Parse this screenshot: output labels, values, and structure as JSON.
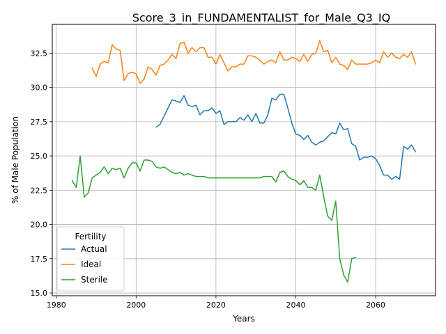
{
  "chart_data": {
    "type": "line",
    "title": "Score_3_in_FUNDAMENTALIST_for_Male_Q3_IQ",
    "xlabel": "Years",
    "ylabel": "% of Male Population",
    "xlim": [
      1979,
      2075
    ],
    "ylim": [
      14.8,
      34.6
    ],
    "xticks": [
      1980,
      2000,
      2020,
      2040,
      2060
    ],
    "xtick_labels": [
      "1980",
      "2000",
      "2020",
      "2040",
      "2060"
    ],
    "yticks": [
      15.0,
      17.5,
      20.0,
      22.5,
      25.0,
      27.5,
      30.0,
      32.5
    ],
    "ytick_labels": [
      "15.0",
      "17.5",
      "20.0",
      "22.5",
      "25.0",
      "27.5",
      "30.0",
      "32.5"
    ],
    "grid": true,
    "legend": {
      "title": "Fertility",
      "placement": "lower-left"
    },
    "series": [
      {
        "name": "Actual",
        "color": "#1f77b4",
        "x": [
          2005,
          2006,
          2007,
          2008,
          2009,
          2010,
          2011,
          2012,
          2013,
          2014,
          2015,
          2016,
          2017,
          2018,
          2019,
          2020,
          2021,
          2022,
          2023,
          2024,
          2025,
          2026,
          2027,
          2028,
          2029,
          2030,
          2031,
          2032,
          2033,
          2034,
          2035,
          2036,
          2037,
          2038,
          2039,
          2040,
          2041,
          2042,
          2043,
          2044,
          2045,
          2046,
          2047,
          2048,
          2049,
          2050,
          2051,
          2052,
          2053,
          2054,
          2055,
          2056,
          2057,
          2058,
          2059,
          2060,
          2061,
          2062,
          2063,
          2064,
          2065,
          2066,
          2067,
          2068,
          2069,
          2070
        ],
        "y": [
          27.1,
          27.3,
          27.9,
          28.5,
          29.1,
          29.0,
          28.9,
          29.4,
          28.7,
          28.6,
          28.7,
          28.0,
          28.3,
          28.3,
          28.5,
          28.1,
          28.3,
          27.3,
          27.5,
          27.5,
          27.5,
          27.8,
          27.6,
          28.0,
          27.5,
          28.1,
          27.4,
          27.4,
          28.0,
          29.2,
          29.1,
          29.5,
          29.5,
          28.5,
          27.4,
          26.6,
          26.5,
          26.2,
          26.5,
          26.0,
          25.8,
          26.0,
          26.1,
          26.4,
          26.7,
          26.6,
          27.4,
          26.9,
          27.0,
          25.9,
          25.7,
          24.7,
          24.9,
          24.9,
          25.0,
          24.8,
          24.3,
          23.6,
          23.6,
          23.3,
          23.5,
          23.3,
          25.7,
          25.5,
          25.8,
          25.3
        ]
      },
      {
        "name": "Ideal",
        "color": "#ff7f0e",
        "x": [
          1989,
          1990,
          1991,
          1992,
          1993,
          1994,
          1995,
          1996,
          1997,
          1998,
          1999,
          2000,
          2001,
          2002,
          2003,
          2004,
          2005,
          2006,
          2007,
          2008,
          2009,
          2010,
          2011,
          2012,
          2013,
          2014,
          2015,
          2016,
          2017,
          2018,
          2019,
          2020,
          2021,
          2022,
          2023,
          2024,
          2025,
          2026,
          2027,
          2028,
          2029,
          2030,
          2031,
          2032,
          2033,
          2034,
          2035,
          2036,
          2037,
          2038,
          2039,
          2040,
          2041,
          2042,
          2043,
          2044,
          2045,
          2046,
          2047,
          2048,
          2049,
          2050,
          2051,
          2052,
          2053,
          2054,
          2055,
          2056,
          2057,
          2058,
          2059,
          2060,
          2061,
          2062,
          2063,
          2064,
          2065,
          2066,
          2067,
          2068,
          2069,
          2070
        ],
        "y": [
          31.4,
          30.8,
          31.7,
          31.9,
          31.8,
          33.1,
          32.8,
          32.7,
          30.5,
          31.0,
          31.1,
          31.0,
          30.3,
          30.6,
          31.5,
          31.3,
          30.9,
          31.6,
          31.7,
          32.0,
          32.4,
          32.1,
          33.2,
          33.3,
          32.5,
          32.9,
          32.6,
          32.9,
          32.9,
          32.2,
          32.2,
          31.7,
          32.4,
          31.8,
          31.2,
          31.5,
          31.5,
          31.7,
          31.7,
          32.3,
          32.3,
          32.2,
          32.0,
          31.7,
          31.9,
          32.0,
          31.8,
          32.6,
          32.0,
          32.0,
          32.2,
          32.1,
          31.9,
          32.4,
          31.9,
          32.4,
          32.5,
          33.4,
          32.6,
          32.7,
          31.8,
          32.2,
          31.7,
          31.6,
          31.3,
          32.0,
          31.7,
          31.7,
          31.7,
          31.7,
          31.8,
          32.0,
          31.8,
          32.6,
          32.2,
          32.5,
          32.2,
          32.1,
          32.4,
          32.2,
          32.6,
          31.7
        ]
      },
      {
        "name": "Sterile",
        "color": "#2ca02c",
        "x": [
          1984,
          1985,
          1986,
          1987,
          1988,
          1989,
          1990,
          1991,
          1992,
          1993,
          1994,
          1995,
          1996,
          1997,
          1998,
          1999,
          2000,
          2001,
          2002,
          2003,
          2004,
          2005,
          2006,
          2007,
          2008,
          2009,
          2010,
          2011,
          2012,
          2013,
          2014,
          2015,
          2016,
          2017,
          2018,
          2019,
          2020,
          2021,
          2022,
          2023,
          2024,
          2025,
          2026,
          2027,
          2028,
          2029,
          2030,
          2031,
          2032,
          2033,
          2034,
          2035,
          2036,
          2037,
          2038,
          2039,
          2040,
          2041,
          2042,
          2043,
          2044,
          2045,
          2046,
          2047,
          2048,
          2049,
          2050,
          2051,
          2052,
          2053,
          2054,
          2055
        ],
        "y": [
          23.2,
          22.7,
          25.0,
          22.0,
          22.3,
          23.4,
          23.6,
          23.8,
          24.2,
          23.7,
          24.1,
          24.0,
          24.1,
          23.4,
          24.1,
          24.5,
          24.5,
          23.9,
          24.7,
          24.7,
          24.6,
          24.2,
          24.1,
          24.2,
          24.0,
          23.8,
          23.7,
          23.8,
          23.6,
          23.7,
          23.6,
          23.5,
          23.5,
          23.5,
          23.4,
          23.4,
          23.4,
          23.4,
          23.4,
          23.4,
          23.4,
          23.4,
          23.4,
          23.4,
          23.4,
          23.4,
          23.4,
          23.4,
          23.5,
          23.5,
          23.5,
          23.1,
          23.8,
          23.9,
          23.5,
          23.3,
          23.2,
          22.9,
          23.2,
          22.7,
          22.7,
          22.5,
          23.6,
          22.0,
          20.6,
          20.3,
          21.7,
          17.5,
          16.3,
          15.8,
          17.5,
          17.6
        ]
      }
    ]
  }
}
